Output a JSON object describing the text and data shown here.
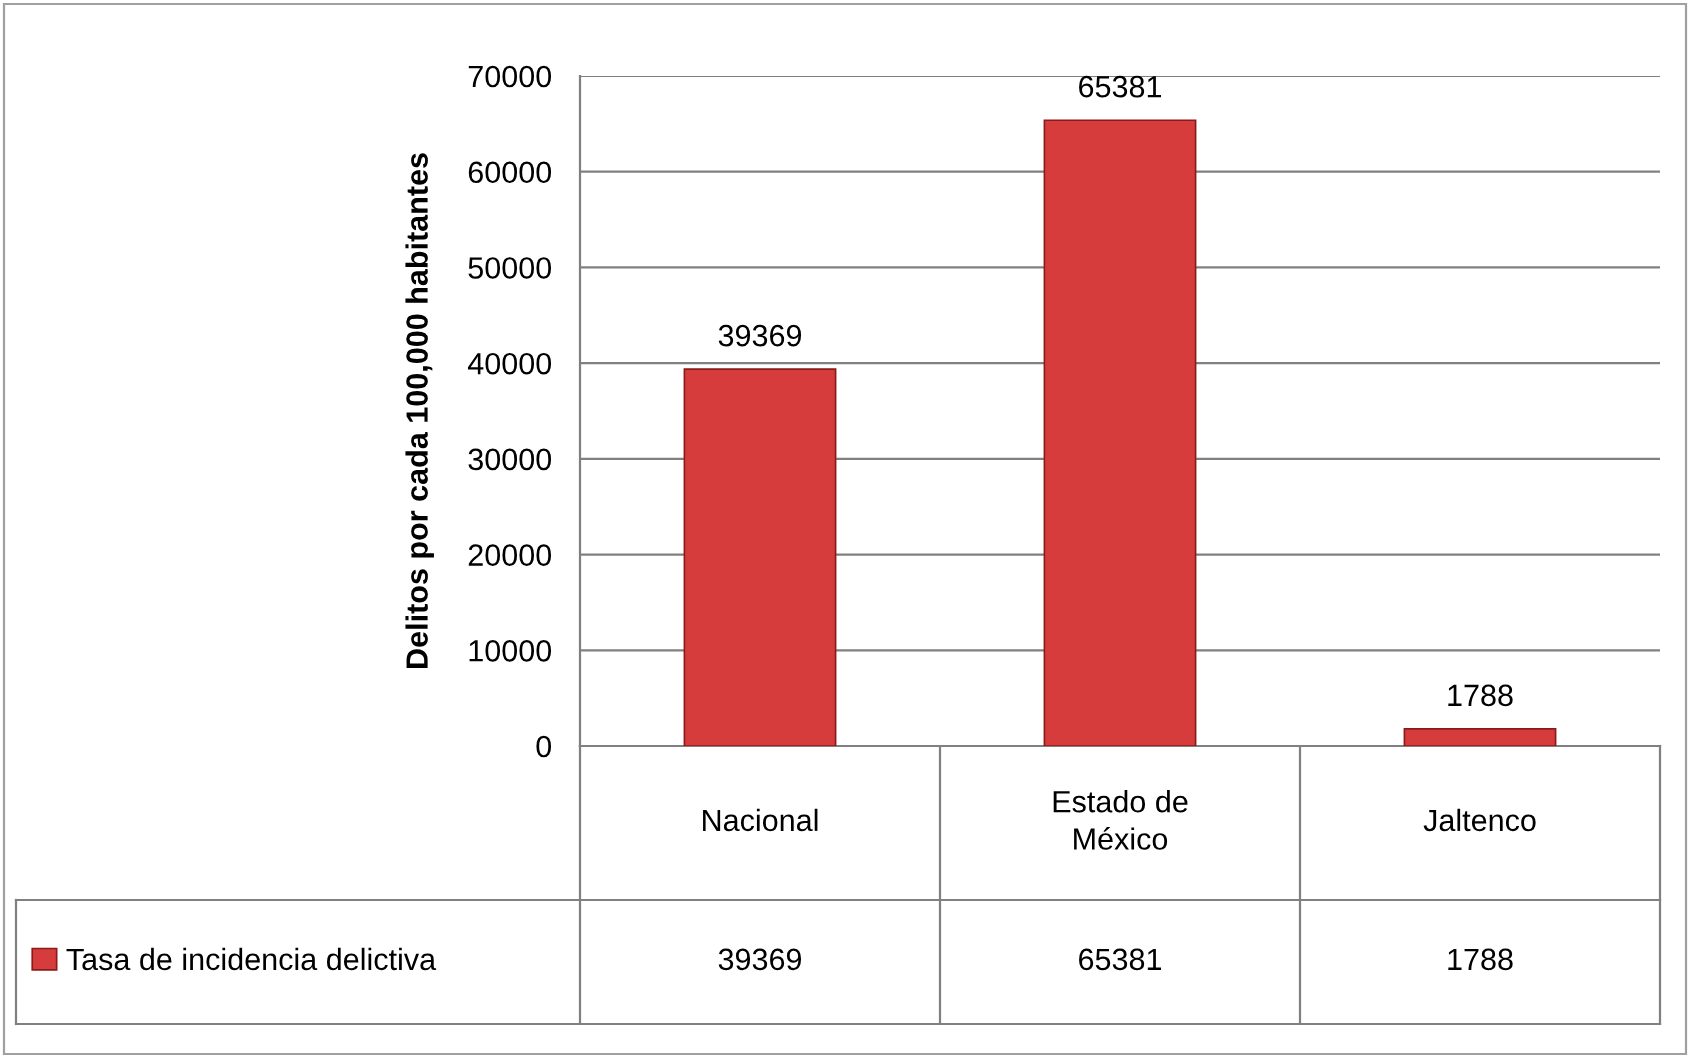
{
  "chart_data": {
    "type": "bar",
    "ylabel": "Delitos por cada 100,000 habitantes",
    "categories": [
      "Nacional",
      "Estado de México",
      "Jaltenco"
    ],
    "series": [
      {
        "name": "Tasa de incidencia delictiva",
        "color": "#d63c3c",
        "values": [
          39369,
          65381,
          1788
        ],
        "value_labels": [
          "39369",
          "65381",
          "1788"
        ]
      }
    ],
    "ylim": [
      0,
      70000
    ],
    "yticks": [
      0,
      10000,
      20000,
      30000,
      40000,
      50000,
      60000,
      70000
    ],
    "annotations": [
      "39369",
      "65381",
      "1788"
    ],
    "grid": "y",
    "legend": "bottom"
  }
}
